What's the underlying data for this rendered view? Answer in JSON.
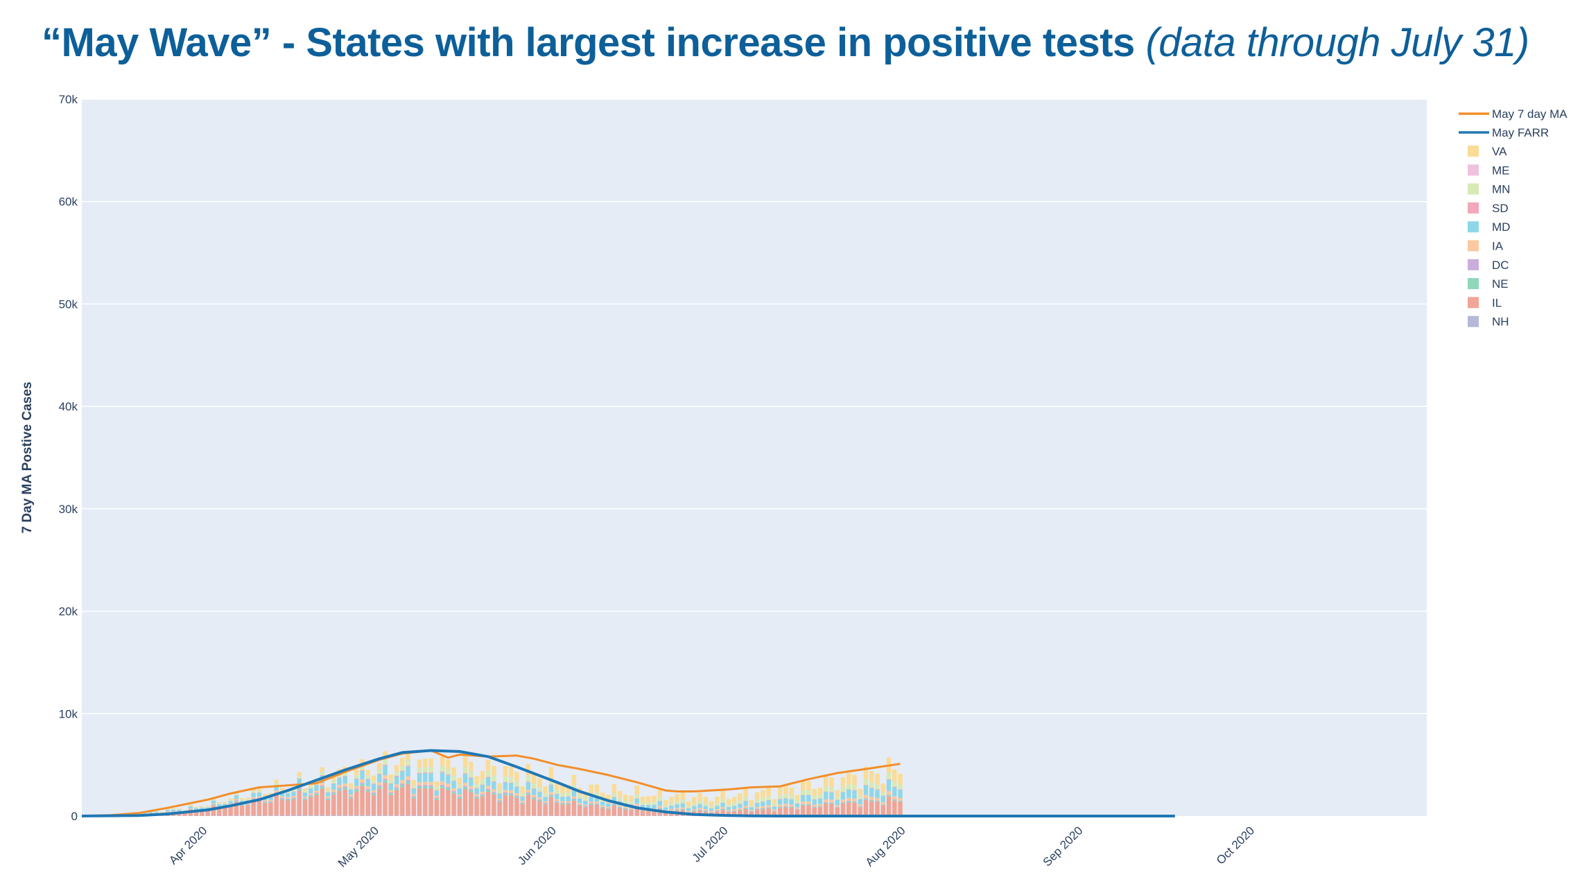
{
  "title": {
    "main": "“May Wave” - States with largest increase in positive tests",
    "subtitle": "(data through July 31)"
  },
  "chart_data": {
    "type": "bar",
    "barmode": "stack",
    "ylabel": "7 Day MA Postive Cases",
    "xlabel": "",
    "ylim": [
      0,
      70000
    ],
    "yticks": [
      0,
      10000,
      20000,
      30000,
      40000,
      50000,
      60000,
      70000
    ],
    "ytick_labels": [
      "0",
      "10k",
      "20k",
      "30k",
      "40k",
      "50k",
      "60k",
      "70k"
    ],
    "xlim": [
      "2020-03-10",
      "2020-10-31"
    ],
    "xticks": [
      "2020-04-01",
      "2020-05-01",
      "2020-06-01",
      "2020-07-01",
      "2020-08-01",
      "2020-09-01",
      "2020-10-01"
    ],
    "xtick_labels": [
      "Apr 2020",
      "May 2020",
      "Jun 2020",
      "Jul 2020",
      "Aug 2020",
      "Sep 2020",
      "Oct 2020"
    ],
    "bars_start_date": "2020-03-10",
    "bars_end_date": "2020-07-31",
    "grid": true,
    "legend_position": "right",
    "stack_series": [
      {
        "name": "NH",
        "color": "#b5b8d9",
        "profile": [
          [
            0,
            0
          ],
          [
            20,
            30
          ],
          [
            40,
            80
          ],
          [
            60,
            60
          ],
          [
            80,
            40
          ],
          [
            100,
            30
          ],
          [
            143,
            40
          ]
        ]
      },
      {
        "name": "IL",
        "color": "#f0a596",
        "profile": [
          [
            0,
            0
          ],
          [
            10,
            100
          ],
          [
            20,
            500
          ],
          [
            30,
            1300
          ],
          [
            40,
            1900
          ],
          [
            50,
            2400
          ],
          [
            55,
            2600
          ],
          [
            60,
            2400
          ],
          [
            70,
            2000
          ],
          [
            80,
            1500
          ],
          [
            90,
            900
          ],
          [
            100,
            500
          ],
          [
            110,
            400
          ],
          [
            120,
            600
          ],
          [
            130,
            1000
          ],
          [
            143,
            1500
          ]
        ]
      },
      {
        "name": "NE",
        "color": "#8fd6bb",
        "profile": [
          [
            0,
            0
          ],
          [
            20,
            30
          ],
          [
            40,
            130
          ],
          [
            55,
            200
          ],
          [
            70,
            150
          ],
          [
            90,
            80
          ],
          [
            110,
            60
          ],
          [
            143,
            80
          ]
        ]
      },
      {
        "name": "DC",
        "color": "#c9aedb",
        "profile": [
          [
            0,
            0
          ],
          [
            20,
            30
          ],
          [
            40,
            100
          ],
          [
            55,
            130
          ],
          [
            70,
            100
          ],
          [
            90,
            50
          ],
          [
            110,
            30
          ],
          [
            143,
            60
          ]
        ]
      },
      {
        "name": "IA",
        "color": "#fac99f",
        "profile": [
          [
            0,
            0
          ],
          [
            20,
            40
          ],
          [
            40,
            200
          ],
          [
            55,
            300
          ],
          [
            70,
            250
          ],
          [
            90,
            150
          ],
          [
            110,
            120
          ],
          [
            143,
            300
          ]
        ]
      },
      {
        "name": "MD",
        "color": "#8fd7e8",
        "profile": [
          [
            0,
            0
          ],
          [
            20,
            150
          ],
          [
            40,
            500
          ],
          [
            55,
            800
          ],
          [
            70,
            700
          ],
          [
            90,
            400
          ],
          [
            110,
            300
          ],
          [
            120,
            400
          ],
          [
            143,
            900
          ]
        ]
      },
      {
        "name": "SD",
        "color": "#f2a7bb",
        "profile": [
          [
            0,
            0
          ],
          [
            20,
            10
          ],
          [
            40,
            40
          ],
          [
            55,
            80
          ],
          [
            70,
            60
          ],
          [
            90,
            30
          ],
          [
            110,
            20
          ],
          [
            143,
            50
          ]
        ]
      },
      {
        "name": "MN",
        "color": "#d7eab5",
        "profile": [
          [
            0,
            0
          ],
          [
            20,
            50
          ],
          [
            40,
            200
          ],
          [
            55,
            400
          ],
          [
            70,
            500
          ],
          [
            80,
            450
          ],
          [
            90,
            300
          ],
          [
            110,
            250
          ],
          [
            143,
            500
          ]
        ]
      },
      {
        "name": "ME",
        "color": "#eec2dc",
        "profile": [
          [
            0,
            0
          ],
          [
            20,
            5
          ],
          [
            40,
            20
          ],
          [
            55,
            25
          ],
          [
            70,
            20
          ],
          [
            90,
            10
          ],
          [
            110,
            10
          ],
          [
            143,
            20
          ]
        ]
      },
      {
        "name": "VA",
        "color": "#fadc96",
        "profile": [
          [
            0,
            0
          ],
          [
            20,
            80
          ],
          [
            40,
            300
          ],
          [
            55,
            700
          ],
          [
            70,
            900
          ],
          [
            80,
            900
          ],
          [
            90,
            700
          ],
          [
            110,
            600
          ],
          [
            130,
            800
          ],
          [
            143,
            1200
          ]
        ]
      }
    ],
    "line_series": [
      {
        "name": "May 7 day MA",
        "color": "#f28e2b",
        "dates": [
          "2020-03-10",
          "2020-03-15",
          "2020-03-20",
          "2020-03-25",
          "2020-04-01",
          "2020-04-05",
          "2020-04-10",
          "2020-04-15",
          "2020-04-20",
          "2020-04-25",
          "2020-05-01",
          "2020-05-05",
          "2020-05-10",
          "2020-05-13",
          "2020-05-15",
          "2020-05-20",
          "2020-05-25",
          "2020-05-28",
          "2020-06-01",
          "2020-06-05",
          "2020-06-10",
          "2020-06-15",
          "2020-06-20",
          "2020-06-22",
          "2020-06-25",
          "2020-07-01",
          "2020-07-05",
          "2020-07-10",
          "2020-07-15",
          "2020-07-20",
          "2020-07-25",
          "2020-07-31"
        ],
        "values": [
          0,
          80,
          300,
          800,
          1600,
          2200,
          2800,
          3000,
          3200,
          4300,
          5500,
          6100,
          6400,
          5700,
          6000,
          5800,
          5900,
          5600,
          5000,
          4600,
          4000,
          3300,
          2500,
          2400,
          2400,
          2600,
          2800,
          2900,
          3600,
          4200,
          4600,
          5100
        ]
      },
      {
        "name": "May FARR",
        "color": "#1f77b4",
        "dates": [
          "2020-03-10",
          "2020-03-20",
          "2020-03-25",
          "2020-04-01",
          "2020-04-05",
          "2020-04-10",
          "2020-04-15",
          "2020-04-20",
          "2020-04-25",
          "2020-05-01",
          "2020-05-05",
          "2020-05-10",
          "2020-05-15",
          "2020-05-20",
          "2020-05-25",
          "2020-06-01",
          "2020-06-05",
          "2020-06-10",
          "2020-06-15",
          "2020-06-20",
          "2020-06-25",
          "2020-07-01",
          "2020-07-05",
          "2020-07-10",
          "2020-07-20",
          "2020-08-01",
          "2020-09-01",
          "2020-09-17"
        ],
        "values": [
          0,
          50,
          200,
          600,
          1000,
          1600,
          2500,
          3500,
          4500,
          5600,
          6200,
          6400,
          6300,
          5800,
          4800,
          3300,
          2400,
          1500,
          800,
          400,
          150,
          50,
          20,
          0,
          0,
          0,
          0,
          0
        ]
      }
    ]
  }
}
